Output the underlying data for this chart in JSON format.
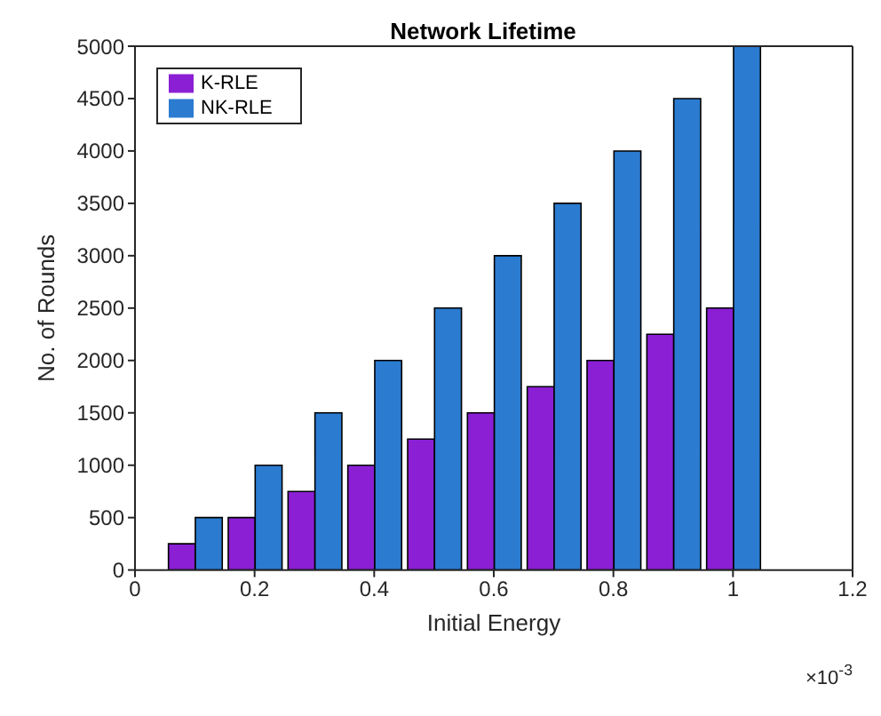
{
  "chart_data": {
    "type": "bar",
    "title": "Network Lifetime",
    "xlabel": "Initial Energy",
    "ylabel": "No. of Rounds",
    "x": [
      0.1,
      0.2,
      0.3,
      0.4,
      0.5,
      0.6,
      0.7,
      0.8,
      0.9,
      1.0
    ],
    "series": [
      {
        "name": "K-RLE",
        "color": "#8a1fd4",
        "values": [
          250,
          500,
          750,
          1000,
          1250,
          1500,
          1750,
          2000,
          2250,
          2500
        ]
      },
      {
        "name": "NK-RLE",
        "color": "#2b7bd0",
        "values": [
          500,
          1000,
          1500,
          2000,
          2500,
          3000,
          3500,
          4000,
          4500,
          5000
        ]
      }
    ],
    "xlim": [
      0,
      1.2
    ],
    "xticks": [
      0,
      0.2,
      0.4,
      0.6,
      0.8,
      1,
      1.2
    ],
    "ylim": [
      0,
      5000
    ],
    "yticks": [
      0,
      500,
      1000,
      1500,
      2000,
      2500,
      3000,
      3500,
      4000,
      4500,
      5000
    ],
    "annotations": [
      "×10$^{-3}$"
    ],
    "legend": "top left",
    "grid": false
  }
}
